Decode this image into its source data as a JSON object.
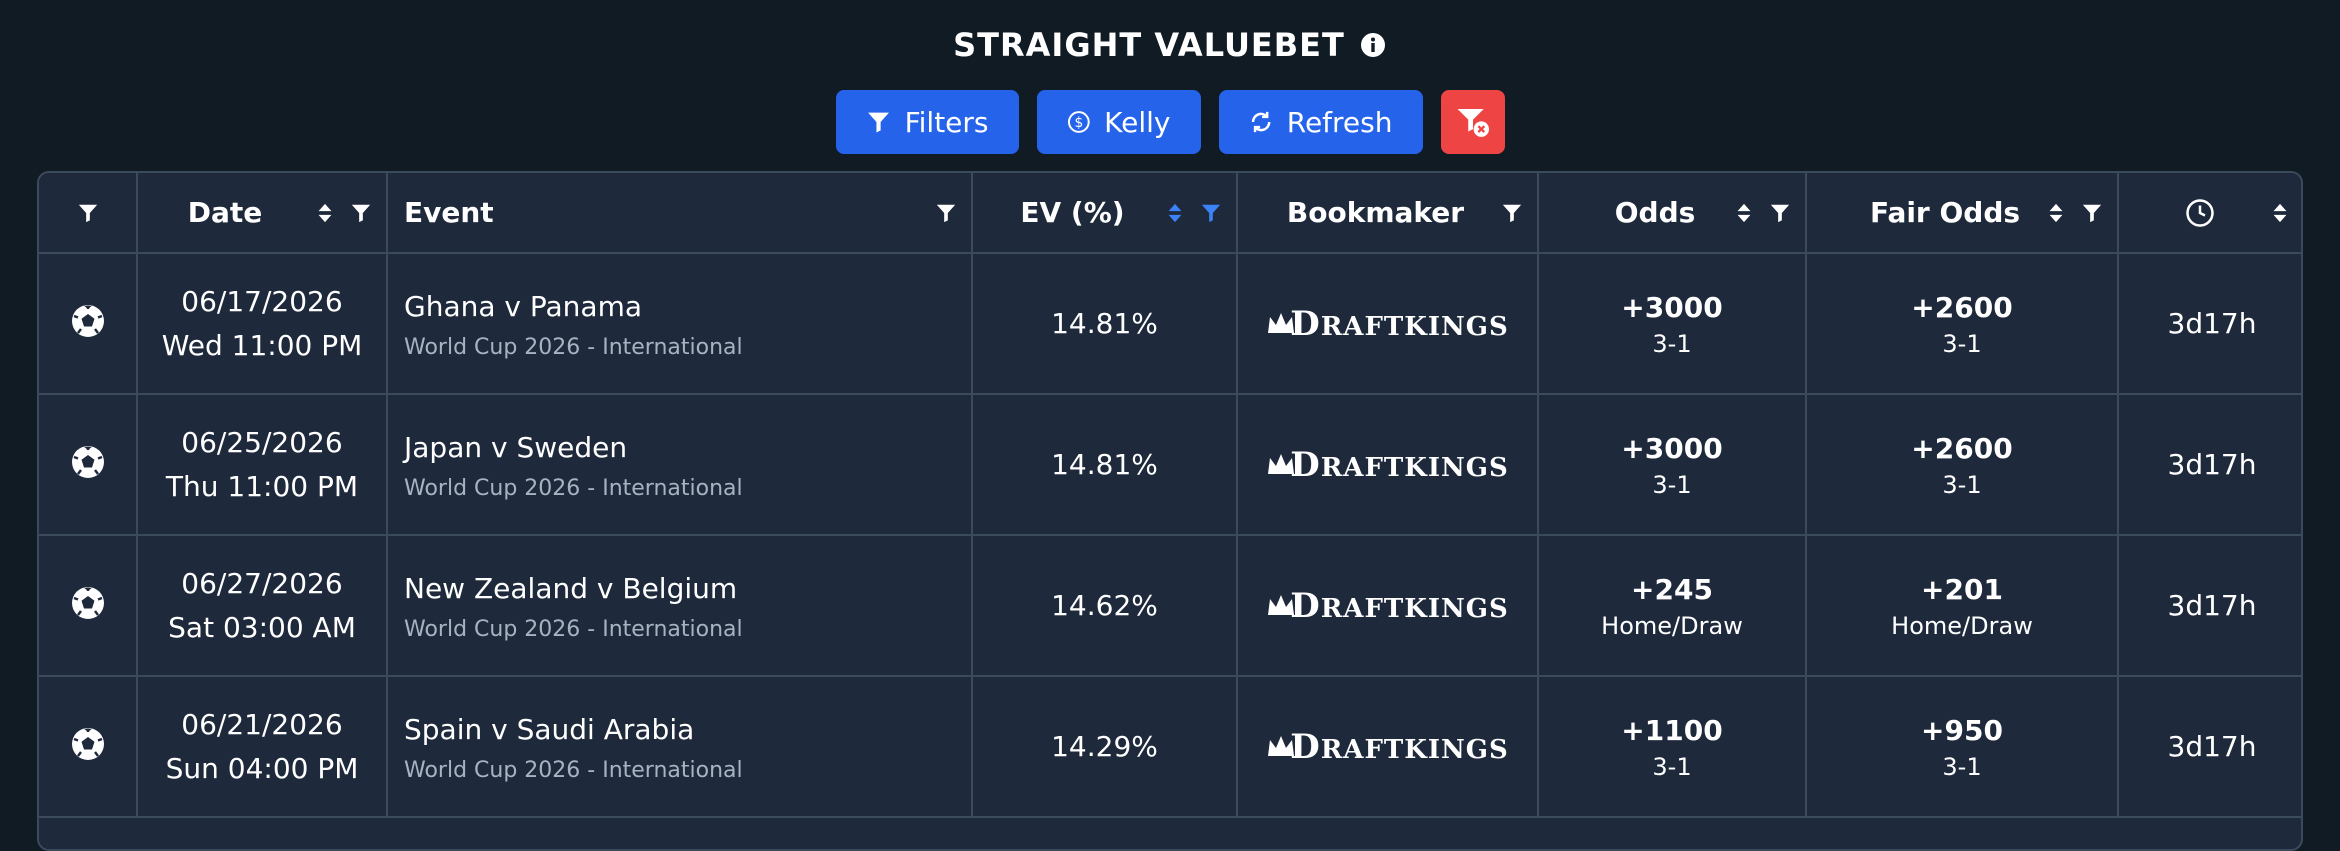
{
  "page": {
    "title": "STRAIGHT VALUEBET"
  },
  "toolbar": {
    "filters_label": "Filters",
    "kelly_label": "Kelly",
    "refresh_label": "Refresh"
  },
  "table": {
    "columns": {
      "date": "Date",
      "event": "Event",
      "ev": "EV (%)",
      "bookmaker": "Bookmaker",
      "odds": "Odds",
      "fair_odds": "Fair Odds"
    },
    "rows": [
      {
        "sport_icon": "soccer-ball-icon",
        "date": "06/17/2026",
        "time": "Wed 11:00 PM",
        "event": "Ghana v Panama",
        "league": "World Cup 2026 - International",
        "ev": "14.81%",
        "bookmaker": "DRAFTKINGS",
        "odds": "+3000",
        "odds_market": "3-1",
        "fair_odds": "+2600",
        "fair_market": "3-1",
        "age": "3d17h"
      },
      {
        "sport_icon": "soccer-ball-icon",
        "date": "06/25/2026",
        "time": "Thu 11:00 PM",
        "event": "Japan v Sweden",
        "league": "World Cup 2026 - International",
        "ev": "14.81%",
        "bookmaker": "DRAFTKINGS",
        "odds": "+3000",
        "odds_market": "3-1",
        "fair_odds": "+2600",
        "fair_market": "3-1",
        "age": "3d17h"
      },
      {
        "sport_icon": "soccer-ball-icon",
        "date": "06/27/2026",
        "time": "Sat 03:00 AM",
        "event": "New Zealand v Belgium",
        "league": "World Cup 2026 - International",
        "ev": "14.62%",
        "bookmaker": "DRAFTKINGS",
        "odds": "+245",
        "odds_market": "Home/Draw",
        "fair_odds": "+201",
        "fair_market": "Home/Draw",
        "age": "3d17h"
      },
      {
        "sport_icon": "soccer-ball-icon",
        "date": "06/21/2026",
        "time": "Sun 04:00 PM",
        "event": "Spain v Saudi Arabia",
        "league": "World Cup 2026 - International",
        "ev": "14.29%",
        "bookmaker": "DRAFTKINGS",
        "odds": "+1100",
        "odds_market": "3-1",
        "fair_odds": "+950",
        "fair_market": "3-1",
        "age": "3d17h"
      }
    ]
  },
  "colors": {
    "background": "#111b24",
    "table_bg": "#1e293b",
    "border": "#3b4a5c",
    "primary": "#2563eb",
    "danger": "#ef4444",
    "active_sort": "#3b82f6",
    "muted_text": "#a8b3c2"
  }
}
